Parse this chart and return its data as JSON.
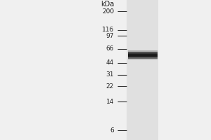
{
  "background_color": "#f0f0f0",
  "gel_background": "#e8e8e8",
  "gel_lane_color": "#dcdcdc",
  "kda_label": "kDa",
  "marker_labels": [
    "200",
    "116",
    "97",
    "66",
    "44",
    "31",
    "22",
    "14",
    "6"
  ],
  "marker_positions_log": [
    200,
    116,
    97,
    66,
    44,
    31,
    22,
    14,
    6
  ],
  "band_kda": 55,
  "band_color": "#1a1a1a",
  "tick_color": "#333333",
  "label_color": "#222222",
  "font_size_markers": 6.5,
  "font_size_kda": 7.0,
  "y_min": 4.5,
  "y_max": 280
}
